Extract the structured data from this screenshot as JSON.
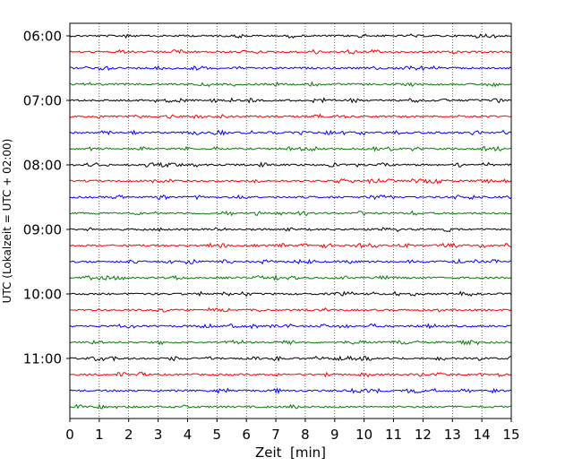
{
  "chart_data": {
    "type": "line",
    "title": "",
    "xlabel": "Zeit  [min]",
    "ylabel": "UTC (Lokalzeit = UTC + 02:00)",
    "xlim": [
      0,
      15
    ],
    "x_ticks": [
      0,
      1,
      2,
      3,
      4,
      5,
      6,
      7,
      8,
      9,
      10,
      11,
      12,
      13,
      14,
      15
    ],
    "y_tick_labels": [
      "06:00",
      "07:00",
      "08:00",
      "09:00",
      "10:00",
      "11:00"
    ],
    "grid": "vertical dotted",
    "legend": "none",
    "trace_colors": [
      "#000000",
      "#ff0000",
      "#0000ff",
      "#008000"
    ],
    "rows": [
      {
        "start": "06:00",
        "color": "#000000"
      },
      {
        "start": "06:15",
        "color": "#ff0000"
      },
      {
        "start": "06:30",
        "color": "#0000ff"
      },
      {
        "start": "06:45",
        "color": "#008000"
      },
      {
        "start": "07:00",
        "color": "#000000"
      },
      {
        "start": "07:15",
        "color": "#ff0000"
      },
      {
        "start": "07:30",
        "color": "#0000ff"
      },
      {
        "start": "07:45",
        "color": "#008000"
      },
      {
        "start": "08:00",
        "color": "#000000"
      },
      {
        "start": "08:15",
        "color": "#ff0000"
      },
      {
        "start": "08:30",
        "color": "#0000ff"
      },
      {
        "start": "08:45",
        "color": "#008000"
      },
      {
        "start": "09:00",
        "color": "#000000"
      },
      {
        "start": "09:15",
        "color": "#ff0000"
      },
      {
        "start": "09:30",
        "color": "#0000ff"
      },
      {
        "start": "09:45",
        "color": "#008000"
      },
      {
        "start": "10:00",
        "color": "#000000"
      },
      {
        "start": "10:15",
        "color": "#ff0000"
      },
      {
        "start": "10:30",
        "color": "#0000ff"
      },
      {
        "start": "10:45",
        "color": "#008000"
      },
      {
        "start": "11:00",
        "color": "#000000"
      },
      {
        "start": "11:15",
        "color": "#ff0000"
      },
      {
        "start": "11:30",
        "color": "#0000ff"
      },
      {
        "start": "11:45",
        "color": "#008000"
      }
    ]
  }
}
